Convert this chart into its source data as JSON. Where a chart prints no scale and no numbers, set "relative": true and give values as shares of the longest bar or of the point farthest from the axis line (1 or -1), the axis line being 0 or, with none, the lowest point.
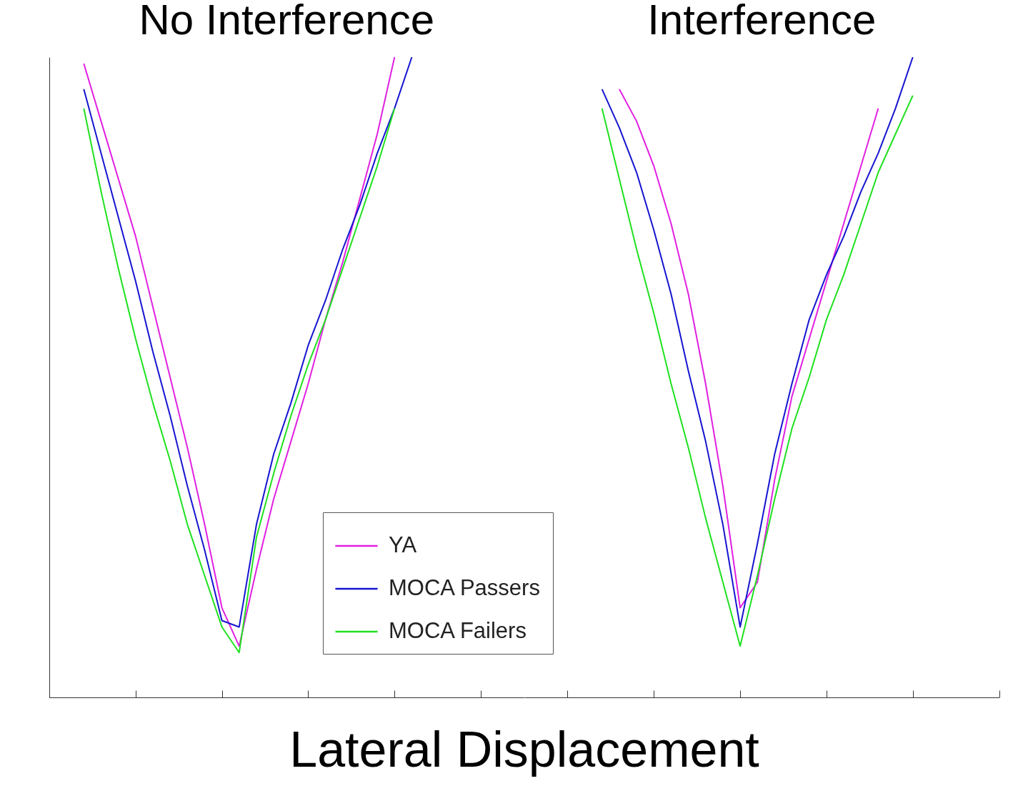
{
  "chart_data": [
    {
      "type": "line",
      "relative": true,
      "title": "No Interference",
      "xlabel": "Lateral Displacement",
      "categories": [
        null,
        null,
        null,
        null,
        null,
        null,
        null,
        null,
        null,
        null,
        null,
        null,
        null,
        null,
        null,
        null,
        null,
        null,
        null,
        null,
        null,
        null,
        null,
        null,
        null,
        null,
        null,
        null
      ],
      "legend": "bottom right",
      "line_style": "solid",
      "series": [
        {
          "name": "YA",
          "color": "#e020e0",
          "values": [
            null,
            null,
            0.99,
            0.9,
            0.81,
            0.72,
            0.61,
            0.5,
            0.39,
            0.27,
            0.14,
            0.08,
            0.2,
            0.31,
            0.4,
            0.49,
            0.59,
            0.68,
            0.78,
            0.88,
            1.0,
            null,
            null,
            null,
            null,
            null,
            null,
            null
          ]
        },
        {
          "name": "MOCA Passers",
          "color": "#1515d0",
          "values": [
            null,
            null,
            0.95,
            0.85,
            0.75,
            0.65,
            0.54,
            0.44,
            0.33,
            0.23,
            0.12,
            0.11,
            0.27,
            0.38,
            0.46,
            0.55,
            0.62,
            0.7,
            0.77,
            0.85,
            0.92,
            1.0,
            null,
            null,
            null,
            null,
            null,
            null
          ]
        },
        {
          "name": "MOCA Failers",
          "color": "#20e020",
          "values": [
            null,
            null,
            0.92,
            0.79,
            0.67,
            0.56,
            0.46,
            0.37,
            0.27,
            0.19,
            0.11,
            0.07,
            0.25,
            0.35,
            0.44,
            0.52,
            0.59,
            0.67,
            0.75,
            0.83,
            0.92,
            null,
            null,
            null,
            null,
            null,
            null,
            null
          ]
        }
      ]
    },
    {
      "type": "line",
      "relative": true,
      "title": "Interference",
      "categories": [
        null,
        null,
        null,
        null,
        null,
        null,
        null,
        null,
        null,
        null,
        null,
        null,
        null,
        null,
        null,
        null,
        null,
        null,
        null,
        null,
        null,
        null,
        null,
        null,
        null,
        null,
        null,
        null
      ],
      "line_style": "solid",
      "series": [
        {
          "color": "#e020e0",
          "values": [
            null,
            null,
            null,
            null,
            null,
            0.95,
            0.9,
            0.83,
            0.74,
            0.63,
            0.49,
            0.33,
            0.14,
            0.18,
            0.34,
            0.47,
            0.56,
            0.65,
            0.74,
            0.83,
            0.92,
            null,
            null,
            null,
            null,
            null,
            null,
            null
          ]
        },
        {
          "color": "#1515d0",
          "values": [
            null,
            null,
            null,
            null,
            0.95,
            0.89,
            0.82,
            0.73,
            0.63,
            0.51,
            0.4,
            0.27,
            0.11,
            0.24,
            0.38,
            0.49,
            0.59,
            0.66,
            0.72,
            0.79,
            0.85,
            0.92,
            1.0,
            null,
            null,
            null,
            null,
            null
          ]
        },
        {
          "color": "#20e020",
          "values": [
            null,
            null,
            null,
            null,
            0.92,
            0.81,
            0.7,
            0.6,
            0.49,
            0.39,
            0.28,
            0.18,
            0.08,
            0.19,
            0.31,
            0.42,
            0.5,
            0.59,
            0.66,
            0.74,
            0.82,
            0.88,
            0.94,
            null,
            null,
            null,
            null,
            null
          ]
        }
      ]
    }
  ]
}
